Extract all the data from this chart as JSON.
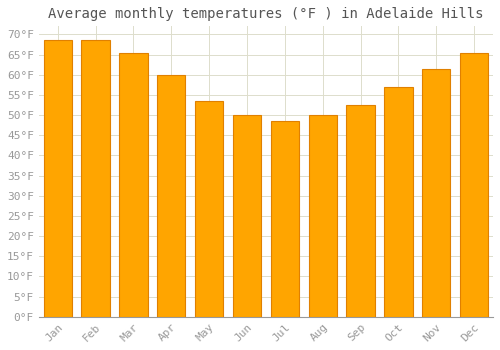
{
  "title": "Average monthly temperatures (°F ) in Adelaide Hills",
  "months": [
    "Jan",
    "Feb",
    "Mar",
    "Apr",
    "May",
    "Jun",
    "Jul",
    "Aug",
    "Sep",
    "Oct",
    "Nov",
    "Dec"
  ],
  "values": [
    68.5,
    68.5,
    65.5,
    60.0,
    53.5,
    50.0,
    48.5,
    50.0,
    52.5,
    57.0,
    61.5,
    65.5
  ],
  "bar_color": "#FFA500",
  "bar_edge_color": "#E08000",
  "background_color": "#FFFFFF",
  "grid_color": "#DDDDCC",
  "ylim": [
    0,
    72
  ],
  "yticks": [
    0,
    5,
    10,
    15,
    20,
    25,
    30,
    35,
    40,
    45,
    50,
    55,
    60,
    65,
    70
  ],
  "title_fontsize": 10,
  "tick_fontsize": 8,
  "tick_color": "#999999",
  "title_color": "#555555",
  "font_family": "monospace",
  "bar_width": 0.75
}
